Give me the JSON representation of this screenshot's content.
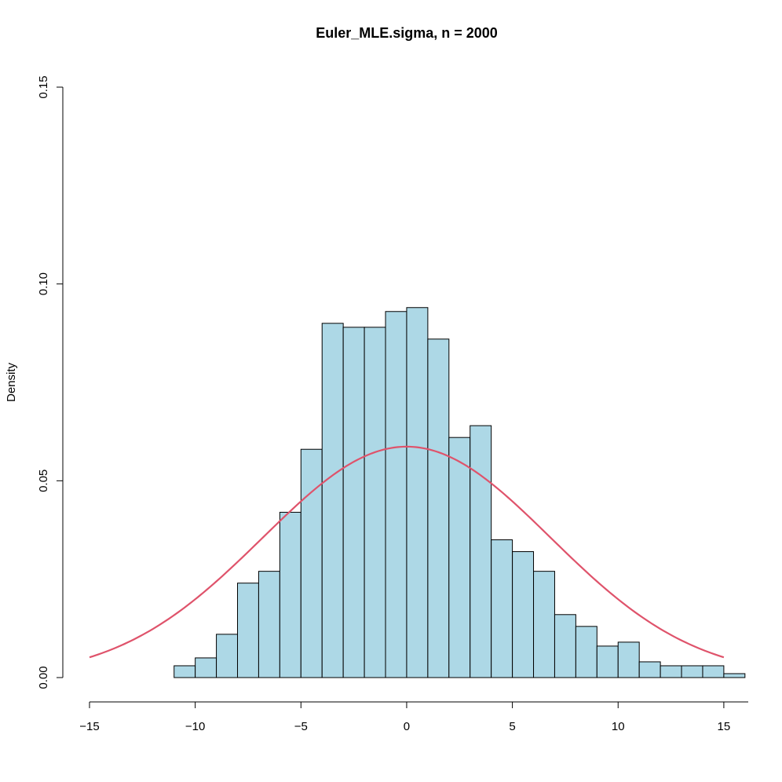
{
  "chart_data": {
    "type": "bar",
    "title": "Euler_MLE.sigma, n = 2000",
    "xlabel": "",
    "ylabel": "Density",
    "xlim": [
      -15,
      16
    ],
    "ylim": [
      0,
      0.15
    ],
    "x_ticks": [
      "−15",
      "−10",
      "−5",
      "0",
      "5",
      "10",
      "15"
    ],
    "y_ticks": [
      "0.00",
      "0.05",
      "0.10",
      "0.15"
    ],
    "grid": false,
    "bin_width": 1,
    "bins": [
      {
        "x0": -11,
        "x1": -10,
        "density": 0.003
      },
      {
        "x0": -10,
        "x1": -9,
        "density": 0.005
      },
      {
        "x0": -9,
        "x1": -8,
        "density": 0.011
      },
      {
        "x0": -8,
        "x1": -7,
        "density": 0.024
      },
      {
        "x0": -7,
        "x1": -6,
        "density": 0.027
      },
      {
        "x0": -6,
        "x1": -5,
        "density": 0.042
      },
      {
        "x0": -5,
        "x1": -4,
        "density": 0.058
      },
      {
        "x0": -4,
        "x1": -3,
        "density": 0.09
      },
      {
        "x0": -3,
        "x1": -2,
        "density": 0.089
      },
      {
        "x0": -2,
        "x1": -1,
        "density": 0.089
      },
      {
        "x0": -1,
        "x1": 0,
        "density": 0.093
      },
      {
        "x0": 0,
        "x1": 1,
        "density": 0.094
      },
      {
        "x0": 1,
        "x1": 2,
        "density": 0.086
      },
      {
        "x0": 2,
        "x1": 3,
        "density": 0.061
      },
      {
        "x0": 3,
        "x1": 4,
        "density": 0.064
      },
      {
        "x0": 4,
        "x1": 5,
        "density": 0.035
      },
      {
        "x0": 5,
        "x1": 6,
        "density": 0.032
      },
      {
        "x0": 6,
        "x1": 7,
        "density": 0.027
      },
      {
        "x0": 7,
        "x1": 8,
        "density": 0.016
      },
      {
        "x0": 8,
        "x1": 9,
        "density": 0.013
      },
      {
        "x0": 9,
        "x1": 10,
        "density": 0.008
      },
      {
        "x0": 10,
        "x1": 11,
        "density": 0.009
      },
      {
        "x0": 11,
        "x1": 12,
        "density": 0.004
      },
      {
        "x0": 12,
        "x1": 13,
        "density": 0.003
      },
      {
        "x0": 13,
        "x1": 14,
        "density": 0.003
      },
      {
        "x0": 14,
        "x1": 15,
        "density": 0.003
      },
      {
        "x0": 15,
        "x1": 16,
        "density": 0.001
      }
    ],
    "curve": {
      "type": "normal-density",
      "mean": 0,
      "sd": 6.8,
      "x_range": [
        -15,
        15
      ]
    },
    "colors": {
      "bar_fill": "#add8e6",
      "bar_stroke": "#000000",
      "curve": "#df536b"
    }
  }
}
